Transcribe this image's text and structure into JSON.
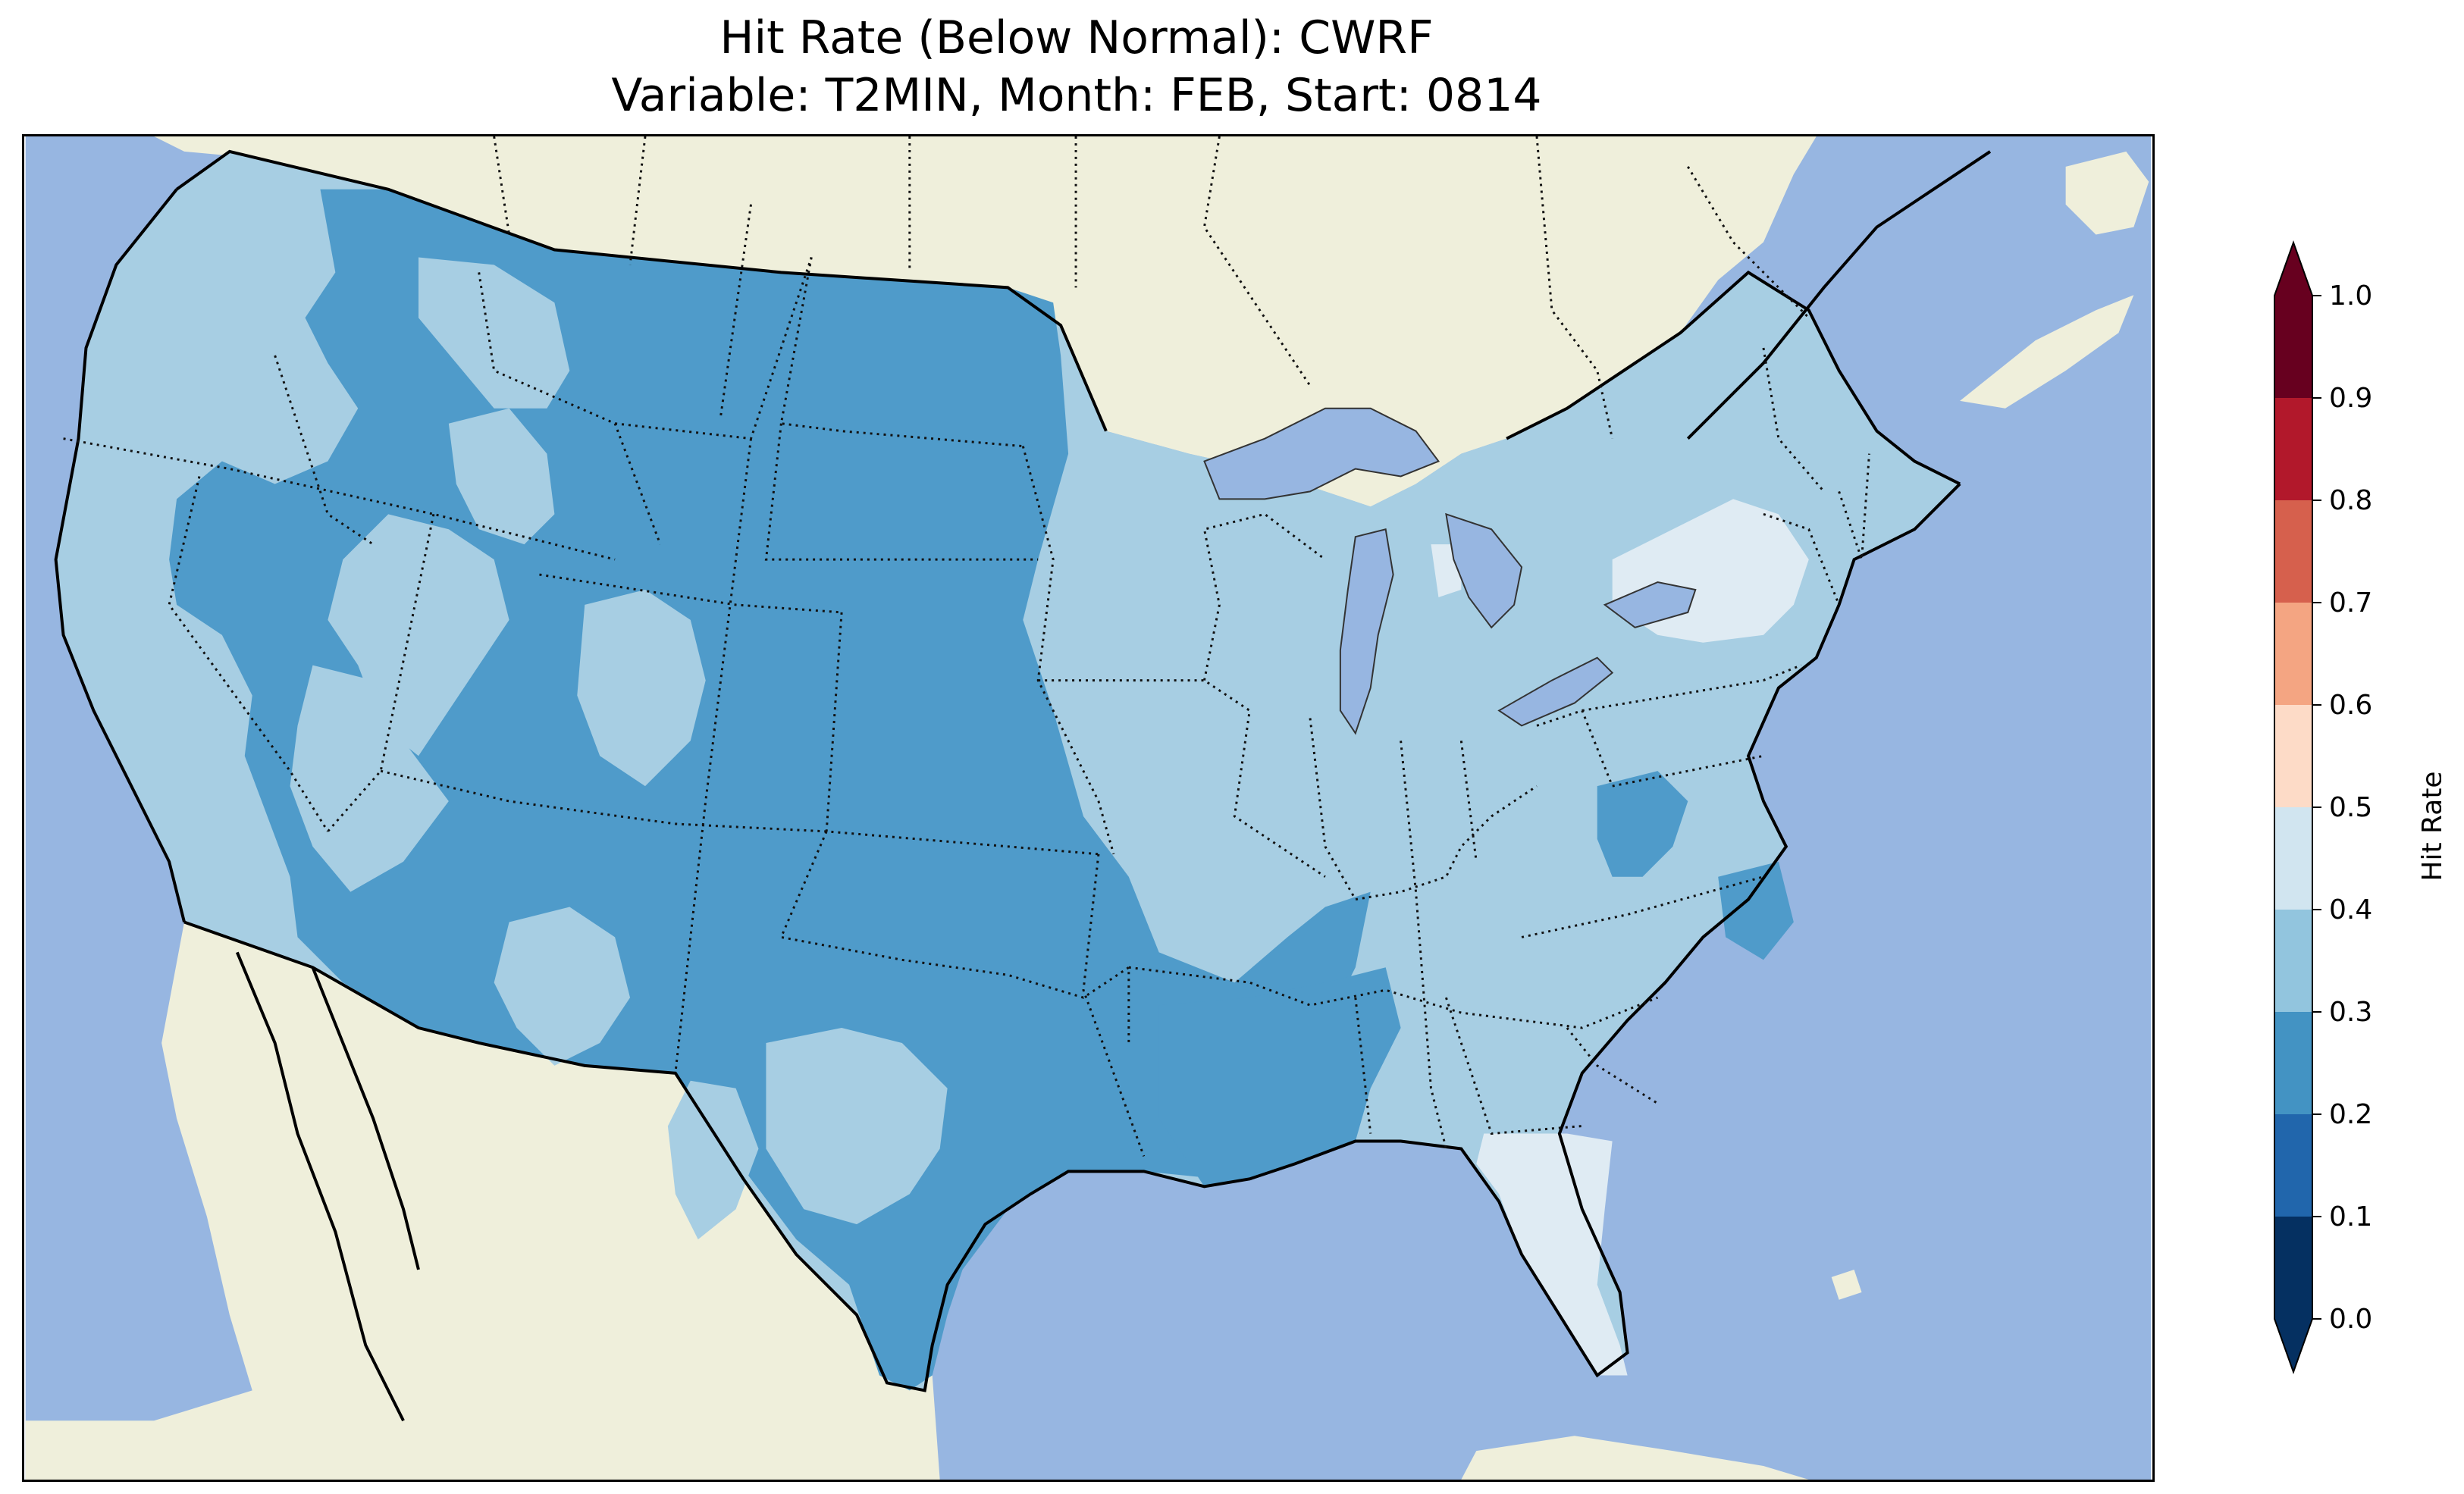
{
  "title_line1": "Hit Rate (Below Normal): CWRF",
  "title_line2": "Variable: T2MIN, Month: FEB, Start: 0814",
  "colorbar": {
    "label": "Hit Rate",
    "ticks": [
      "0.0",
      "0.1",
      "0.2",
      "0.3",
      "0.4",
      "0.5",
      "0.6",
      "0.7",
      "0.8",
      "0.9",
      "1.0"
    ],
    "bins": [
      {
        "range": [
          0.0,
          0.1
        ],
        "color": "#053061"
      },
      {
        "range": [
          0.1,
          0.2
        ],
        "color": "#2166ac"
      },
      {
        "range": [
          0.2,
          0.3
        ],
        "color": "#4393c3"
      },
      {
        "range": [
          0.3,
          0.4
        ],
        "color": "#92c5de"
      },
      {
        "range": [
          0.4,
          0.5
        ],
        "color": "#d1e5f0"
      },
      {
        "range": [
          0.5,
          0.6
        ],
        "color": "#fddbc7"
      },
      {
        "range": [
          0.6,
          0.7
        ],
        "color": "#f4a582"
      },
      {
        "range": [
          0.7,
          0.8
        ],
        "color": "#d6604d"
      },
      {
        "range": [
          0.8,
          0.9
        ],
        "color": "#b2182b"
      },
      {
        "range": [
          0.9,
          1.0
        ],
        "color": "#67001f"
      }
    ],
    "extend": "both"
  },
  "map": {
    "region": "Contiguous United States",
    "ocean_color": "#97b6e1",
    "land_color": "#efefdb",
    "hit_rate_by_region": [
      {
        "region": "Pacific coast (CA, OR, WA)",
        "class": "0.3-0.4"
      },
      {
        "region": "Northern Rockies and Plains (MT, WY, ND, SD, NE)",
        "class": "0.2-0.3"
      },
      {
        "region": "Southwest (AZ, NM)",
        "class": "0.2-0.3"
      },
      {
        "region": "Southern Plains (TX, OK, KS)",
        "class": "0.2-0.3"
      },
      {
        "region": "Lower Mississippi Valley (AR, LA, MS)",
        "class": "0.2-0.3"
      },
      {
        "region": "Midwest and Ohio Valley",
        "class": "0.3-0.4"
      },
      {
        "region": "Southeast and Mid-Atlantic",
        "class": "0.3-0.4"
      },
      {
        "region": "Northeast (New England)",
        "class": "0.3-0.4"
      },
      {
        "region": "Upstate New York",
        "class": "0.4-0.5"
      },
      {
        "region": "Florida and southern Georgia",
        "class": "0.4-0.5"
      },
      {
        "region": "Western Virginia",
        "class": "0.2-0.3"
      },
      {
        "region": "Eastern North Carolina",
        "class": "0.2-0.3"
      }
    ]
  }
}
